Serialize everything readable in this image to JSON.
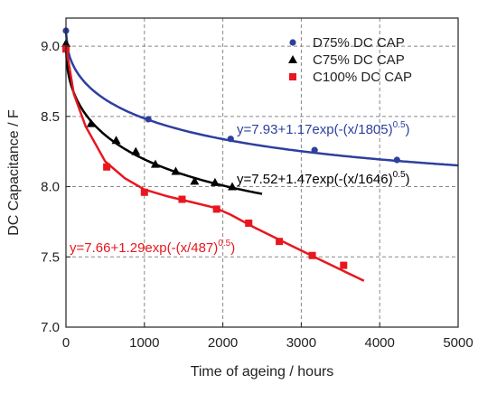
{
  "chart_data": {
    "type": "scatter",
    "xlabel": "Time of ageing / hours",
    "ylabel": "DC Capacitance / F",
    "xlim": [
      0,
      5000
    ],
    "ylim": [
      7.0,
      9.2
    ],
    "x_ticks": [
      0,
      1000,
      2000,
      3000,
      4000,
      5000
    ],
    "y_ticks": [
      7.0,
      7.5,
      8.0,
      8.5,
      9.0
    ],
    "x_tick_labels": [
      "0",
      "1000",
      "2000",
      "3000",
      "4000",
      "5000"
    ],
    "y_tick_labels": [
      "7.0",
      "7.5",
      "8.0",
      "8.5",
      "9.0"
    ],
    "grid": true,
    "legend_position": "top-right",
    "series": [
      {
        "name": "D75% DC CAP",
        "marker": "circle",
        "color": "#2e3f9e",
        "points": [
          [
            0,
            9.11
          ],
          [
            1050,
            8.48
          ],
          [
            2100,
            8.34
          ],
          [
            3170,
            8.26
          ],
          [
            4220,
            8.19
          ]
        ],
        "fit": {
          "a": 7.93,
          "b": 1.17,
          "tau": 1805,
          "x_end": 5000
        },
        "fit_label": {
          "main": "y=7.93+1.17exp(-(x/1805)",
          "exp": "0.5",
          "close": ")"
        }
      },
      {
        "name": "C75% DC CAP",
        "marker": "triangle",
        "color": "#000000",
        "points": [
          [
            0,
            9.02
          ],
          [
            320,
            8.45
          ],
          [
            640,
            8.33
          ],
          [
            890,
            8.25
          ],
          [
            1140,
            8.16
          ],
          [
            1400,
            8.11
          ],
          [
            1640,
            8.04
          ],
          [
            1900,
            8.03
          ],
          [
            2120,
            8.0
          ]
        ],
        "fit": {
          "a": 7.52,
          "b": 1.47,
          "tau": 1646,
          "x_end": 2500
        },
        "fit_label": {
          "main": "y=7.52+1.47exp(-(x/1646)",
          "exp": "0.5",
          "close": ")"
        }
      },
      {
        "name": "C100% DC CAP",
        "marker": "square",
        "color": "#e8171f",
        "points": [
          [
            0,
            8.98
          ],
          [
            520,
            8.14
          ],
          [
            1000,
            7.96
          ],
          [
            1480,
            7.91
          ],
          [
            1920,
            7.84
          ],
          [
            2330,
            7.74
          ],
          [
            2720,
            7.61
          ],
          [
            3140,
            7.51
          ],
          [
            3540,
            7.44
          ]
        ],
        "fit_path": [
          [
            0,
            9.0
          ],
          [
            100,
            8.66
          ],
          [
            250,
            8.43
          ],
          [
            500,
            8.18
          ],
          [
            750,
            8.06
          ],
          [
            1000,
            7.98
          ],
          [
            1300,
            7.93
          ],
          [
            1600,
            7.89
          ],
          [
            1900,
            7.85
          ],
          [
            2100,
            7.8
          ],
          [
            2400,
            7.71
          ],
          [
            2800,
            7.6
          ],
          [
            3200,
            7.49
          ],
          [
            3500,
            7.41
          ],
          [
            3800,
            7.33
          ]
        ],
        "fit_label": {
          "main": "y=7.66+1.29exp(-(x/487)",
          "exp": "0.5",
          "close": ")"
        }
      }
    ]
  }
}
